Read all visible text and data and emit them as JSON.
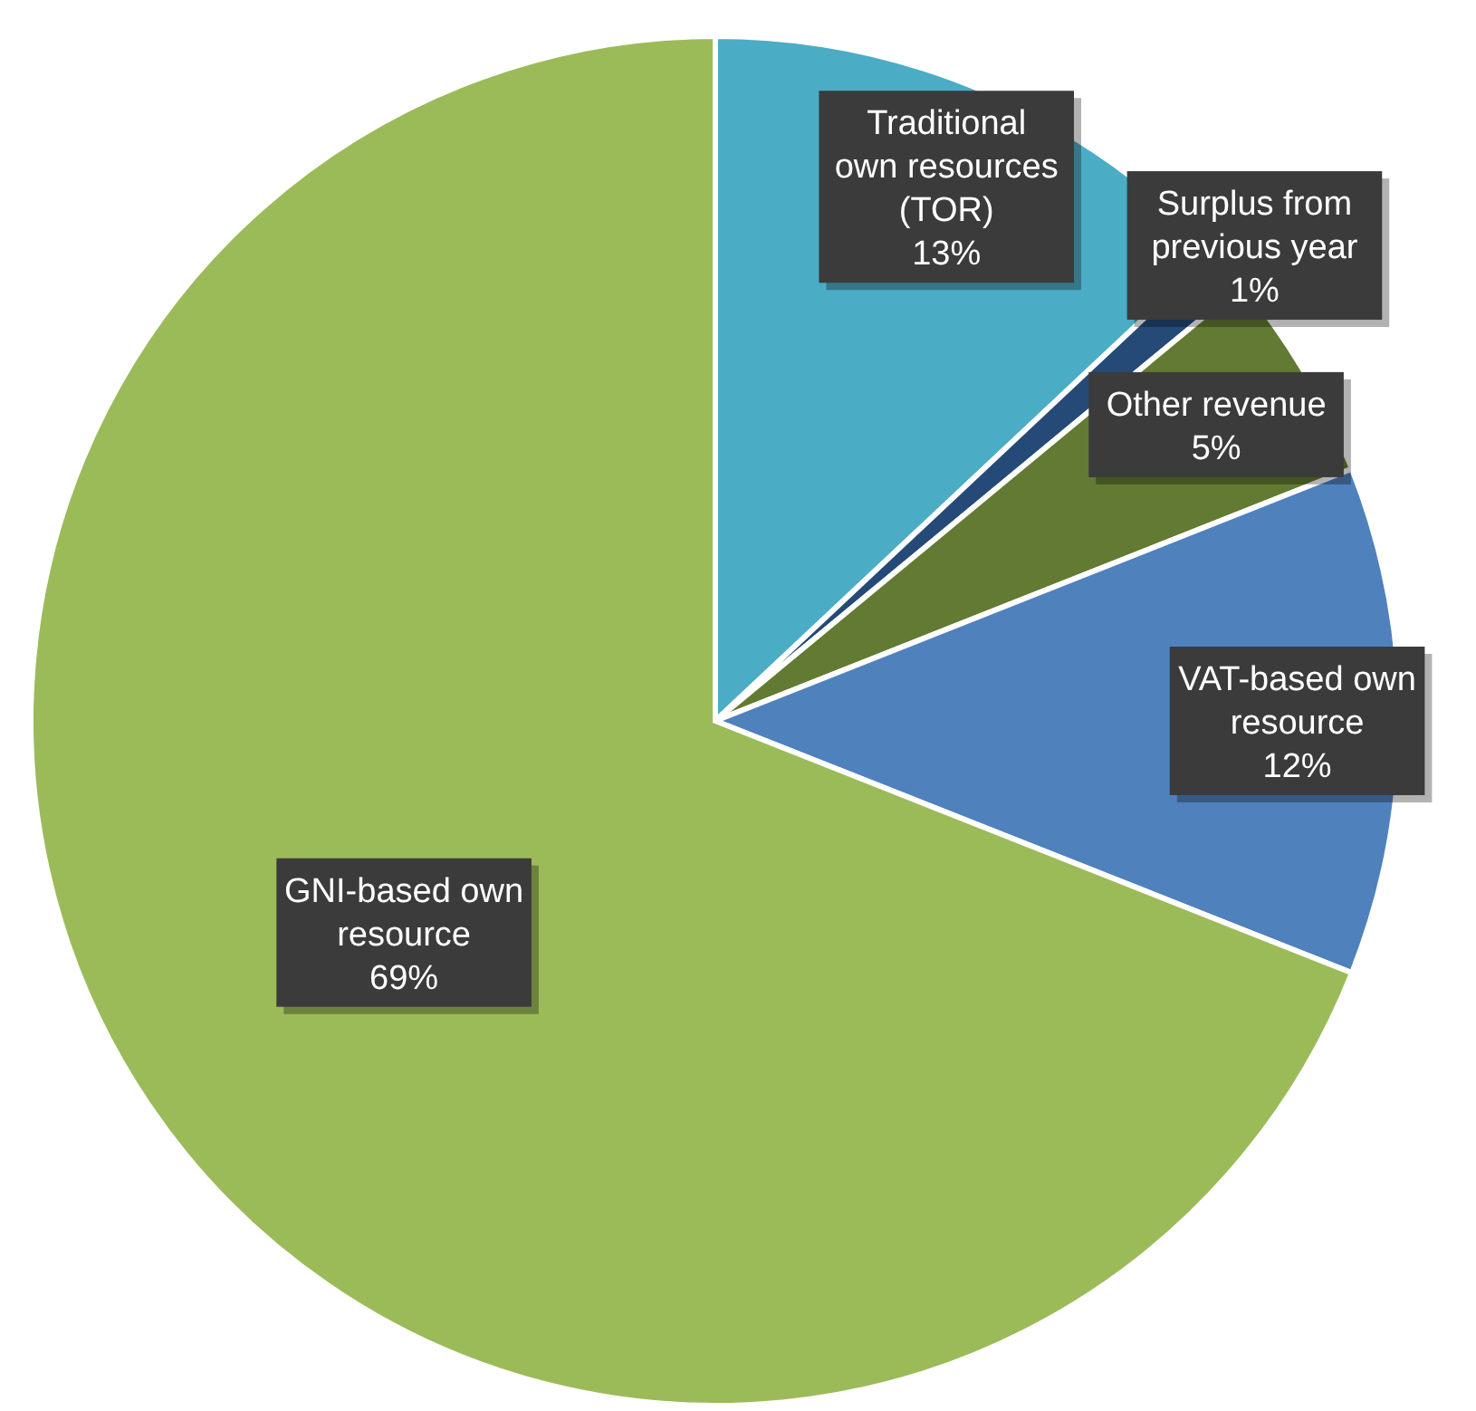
{
  "chart_data": {
    "type": "pie",
    "categories": [
      "Traditional own resources (TOR)",
      "Surplus from previous year",
      "Other revenue",
      "VAT-based own resource",
      "GNI-based own resource"
    ],
    "values": [
      13,
      1,
      5,
      12,
      69
    ],
    "value_labels": [
      "13%",
      "1%",
      "5%",
      "12%",
      "69%"
    ],
    "colors": [
      "#4bacc6",
      "#254a78",
      "#627a32",
      "#4f81bd",
      "#9bbb59"
    ]
  }
}
